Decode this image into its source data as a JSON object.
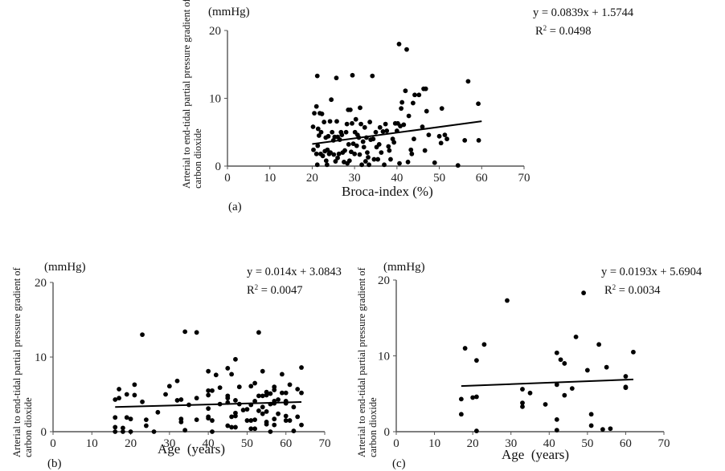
{
  "chart_data": [
    {
      "id": "a",
      "type": "scatter",
      "panel_label": "(a)",
      "unit_label": "(mmHg)",
      "ylabel_line1": "Arterial to end-tidal partial pressure gradient of",
      "ylabel_line2": "carbon dioxide",
      "xlabel": "Broca-index (%)",
      "xlim": [
        0,
        70
      ],
      "ylim": [
        0,
        20
      ],
      "xticks": [
        0,
        10,
        20,
        30,
        40,
        50,
        60,
        70
      ],
      "yticks": [
        0,
        10,
        20
      ],
      "grid": false,
      "trendline": {
        "slope": 0.0839,
        "intercept": 1.5744,
        "x_range": [
          20,
          60
        ]
      },
      "equation": "y = 0.0839x + 1.5744",
      "r2_label": "R",
      "r2_value": " = 0.0498",
      "points": [
        [
          20.2,
          5.8
        ],
        [
          20.3,
          2.4
        ],
        [
          20.5,
          7.8
        ],
        [
          21.0,
          8.8
        ],
        [
          21.0,
          1.8
        ],
        [
          21.2,
          13.3
        ],
        [
          21.2,
          0.2
        ],
        [
          21.3,
          3.0
        ],
        [
          21.4,
          5.5
        ],
        [
          21.6,
          4.5
        ],
        [
          21.8,
          7.8
        ],
        [
          22.0,
          1.8
        ],
        [
          22.1,
          5.0
        ],
        [
          22.3,
          7.7
        ],
        [
          22.5,
          1.5
        ],
        [
          22.8,
          6.5
        ],
        [
          23.0,
          2.2
        ],
        [
          23.2,
          4.2
        ],
        [
          23.3,
          0.8
        ],
        [
          23.5,
          0.2
        ],
        [
          23.6,
          2.4
        ],
        [
          23.8,
          4.4
        ],
        [
          24.0,
          1.8
        ],
        [
          24.2,
          6.6
        ],
        [
          24.3,
          2.0
        ],
        [
          24.5,
          9.8
        ],
        [
          24.7,
          5.0
        ],
        [
          25.0,
          3.8
        ],
        [
          25.1,
          1.7
        ],
        [
          25.3,
          4.3
        ],
        [
          25.5,
          0.7
        ],
        [
          25.7,
          13.0
        ],
        [
          25.8,
          6.6
        ],
        [
          26.0,
          4.3
        ],
        [
          26.0,
          1.2
        ],
        [
          26.3,
          1.8
        ],
        [
          26.5,
          3.9
        ],
        [
          26.8,
          5.0
        ],
        [
          27.0,
          4.6
        ],
        [
          27.2,
          2.0
        ],
        [
          27.5,
          0.6
        ],
        [
          27.7,
          2.3
        ],
        [
          28.0,
          5.0
        ],
        [
          28.2,
          6.2
        ],
        [
          28.3,
          0.4
        ],
        [
          28.5,
          8.3
        ],
        [
          28.6,
          3.2
        ],
        [
          28.8,
          0.8
        ],
        [
          29.0,
          8.3
        ],
        [
          29.2,
          2.1
        ],
        [
          29.4,
          6.3
        ],
        [
          29.5,
          13.4
        ],
        [
          29.7,
          3.3
        ],
        [
          30.0,
          1.8
        ],
        [
          30.1,
          5.0
        ],
        [
          30.3,
          6.9
        ],
        [
          30.5,
          3.0
        ],
        [
          30.7,
          4.6
        ],
        [
          31.0,
          4.2
        ],
        [
          31.2,
          1.7
        ],
        [
          31.3,
          8.6
        ],
        [
          31.5,
          6.2
        ],
        [
          31.7,
          0.2
        ],
        [
          32.0,
          3.6
        ],
        [
          32.2,
          2.8
        ],
        [
          32.4,
          5.7
        ],
        [
          32.6,
          0.7
        ],
        [
          32.8,
          4.2
        ],
        [
          33.0,
          2.0
        ],
        [
          33.2,
          1.3
        ],
        [
          33.4,
          0.2
        ],
        [
          33.6,
          6.5
        ],
        [
          33.8,
          3.9
        ],
        [
          34.2,
          13.3
        ],
        [
          34.4,
          4.0
        ],
        [
          34.6,
          1.0
        ],
        [
          35.0,
          5.0
        ],
        [
          35.2,
          2.8
        ],
        [
          35.5,
          1.0
        ],
        [
          35.8,
          3.2
        ],
        [
          36.0,
          5.7
        ],
        [
          36.3,
          2.0
        ],
        [
          36.7,
          5.1
        ],
        [
          37.0,
          0.2
        ],
        [
          37.3,
          6.2
        ],
        [
          37.6,
          5.2
        ],
        [
          38.0,
          2.9
        ],
        [
          38.2,
          2.3
        ],
        [
          38.5,
          1.0
        ],
        [
          39.0,
          4.0
        ],
        [
          39.3,
          3.5
        ],
        [
          39.6,
          6.3
        ],
        [
          40.0,
          5.2
        ],
        [
          40.2,
          6.3
        ],
        [
          40.5,
          18.0
        ],
        [
          40.6,
          0.4
        ],
        [
          40.8,
          5.9
        ],
        [
          41.0,
          8.5
        ],
        [
          41.2,
          9.4
        ],
        [
          41.6,
          6.1
        ],
        [
          42.0,
          11.1
        ],
        [
          42.3,
          17.2
        ],
        [
          42.6,
          0.6
        ],
        [
          42.8,
          7.4
        ],
        [
          43.3,
          2.4
        ],
        [
          43.5,
          1.8
        ],
        [
          43.8,
          9.3
        ],
        [
          44.0,
          4.0
        ],
        [
          44.2,
          10.5
        ],
        [
          45.2,
          10.5
        ],
        [
          46.0,
          5.8
        ],
        [
          46.3,
          11.4
        ],
        [
          46.6,
          2.3
        ],
        [
          46.8,
          11.4
        ],
        [
          47.0,
          8.1
        ],
        [
          47.5,
          4.6
        ],
        [
          48.9,
          0.5
        ],
        [
          50.0,
          4.4
        ],
        [
          50.4,
          3.4
        ],
        [
          50.6,
          8.5
        ],
        [
          51.3,
          4.6
        ],
        [
          51.8,
          4.0
        ],
        [
          54.4,
          0.1
        ],
        [
          56.0,
          3.8
        ],
        [
          56.8,
          12.5
        ],
        [
          59.2,
          9.2
        ],
        [
          59.3,
          3.8
        ]
      ]
    },
    {
      "id": "b",
      "type": "scatter",
      "panel_label": "(b)",
      "unit_label": "(mmHg)",
      "ylabel_line1": "Arterial to end-tidal partial pressure gradient of",
      "ylabel_line2": "carbon dioxide",
      "xlabel": "Age  (years)",
      "xlim": [
        0,
        70
      ],
      "ylim": [
        0,
        20
      ],
      "xticks": [
        0,
        10,
        20,
        30,
        40,
        50,
        60,
        70
      ],
      "yticks": [
        0,
        10,
        20
      ],
      "grid": false,
      "trendline": {
        "slope": 0.014,
        "intercept": 3.0843,
        "x_range": [
          16,
          64
        ]
      },
      "equation": "y = 0.014x + 3.0843",
      "r2_label": "R",
      "r2_value": " = 0.0047",
      "points": [
        [
          16,
          4.3
        ],
        [
          16,
          1.9
        ],
        [
          16,
          0.6
        ],
        [
          16,
          0.0
        ],
        [
          17,
          5.7
        ],
        [
          17,
          4.5
        ],
        [
          18,
          0.5
        ],
        [
          18,
          0.0
        ],
        [
          19,
          5.0
        ],
        [
          19,
          1.9
        ],
        [
          20,
          1.7
        ],
        [
          20,
          0.0
        ],
        [
          21,
          6.3
        ],
        [
          21,
          4.9
        ],
        [
          23,
          13.0
        ],
        [
          23,
          4.0
        ],
        [
          24,
          1.6
        ],
        [
          24,
          0.8
        ],
        [
          26,
          0.0
        ],
        [
          27,
          2.6
        ],
        [
          29,
          5.0
        ],
        [
          30,
          6.1
        ],
        [
          32,
          6.8
        ],
        [
          32,
          4.2
        ],
        [
          33,
          4.3
        ],
        [
          33,
          1.7
        ],
        [
          33,
          1.3
        ],
        [
          34,
          13.4
        ],
        [
          34,
          0.2
        ],
        [
          35,
          3.6
        ],
        [
          37,
          13.3
        ],
        [
          37,
          4.5
        ],
        [
          37,
          1.6
        ],
        [
          40,
          8.1
        ],
        [
          40,
          5.5
        ],
        [
          40,
          4.9
        ],
        [
          40,
          3.1
        ],
        [
          40,
          2.0
        ],
        [
          40,
          1.8
        ],
        [
          41,
          5.5
        ],
        [
          41,
          1.5
        ],
        [
          41,
          0.0
        ],
        [
          42,
          7.6
        ],
        [
          43,
          5.9
        ],
        [
          43,
          3.7
        ],
        [
          45,
          8.5
        ],
        [
          45,
          4.8
        ],
        [
          45,
          4.5
        ],
        [
          45,
          3.9
        ],
        [
          45,
          0.8
        ],
        [
          46,
          7.7
        ],
        [
          46,
          2.0
        ],
        [
          46,
          0.6
        ],
        [
          47,
          9.7
        ],
        [
          47,
          4.2
        ],
        [
          47,
          2.5
        ],
        [
          47,
          2.1
        ],
        [
          47,
          0.6
        ],
        [
          48,
          6.0
        ],
        [
          48,
          3.7
        ],
        [
          49,
          2.9
        ],
        [
          50,
          3.0
        ],
        [
          50,
          1.5
        ],
        [
          51,
          6.1
        ],
        [
          51,
          3.6
        ],
        [
          51,
          1.5
        ],
        [
          51,
          0.4
        ],
        [
          52,
          6.5
        ],
        [
          52,
          4.1
        ],
        [
          52,
          1.6
        ],
        [
          52,
          0.4
        ],
        [
          53,
          13.3
        ],
        [
          53,
          4.8
        ],
        [
          53,
          2.8
        ],
        [
          54,
          8.1
        ],
        [
          54,
          4.8
        ],
        [
          54,
          3.3
        ],
        [
          54,
          2.4
        ],
        [
          55,
          5.3
        ],
        [
          55,
          4.9
        ],
        [
          55,
          2.7
        ],
        [
          55,
          1.3
        ],
        [
          55,
          1.0
        ],
        [
          56,
          5.1
        ],
        [
          56,
          3.7
        ],
        [
          56,
          0.0
        ],
        [
          57,
          6.0
        ],
        [
          57,
          5.6
        ],
        [
          57,
          4.1
        ],
        [
          57,
          3.8
        ],
        [
          57,
          1.7
        ],
        [
          57,
          0.9
        ],
        [
          58,
          4.3
        ],
        [
          58,
          2.4
        ],
        [
          59,
          7.7
        ],
        [
          59,
          5.2
        ],
        [
          60,
          5.2
        ],
        [
          60,
          4.1
        ],
        [
          60,
          3.8
        ],
        [
          60,
          2.1
        ],
        [
          60,
          1.5
        ],
        [
          61,
          6.3
        ],
        [
          61,
          1.5
        ],
        [
          62,
          3.3
        ],
        [
          62,
          0.1
        ],
        [
          63,
          5.7
        ],
        [
          63,
          2.0
        ],
        [
          64,
          8.6
        ],
        [
          64,
          5.2
        ],
        [
          64,
          0.9
        ]
      ]
    },
    {
      "id": "c",
      "type": "scatter",
      "panel_label": "(c)",
      "unit_label": "(mmHg)",
      "ylabel_line1": "Arterial to end-tidal partial pressure gradient of",
      "ylabel_line2": "carbon dioxide",
      "xlabel": "Age  (years)",
      "xlim": [
        0,
        70
      ],
      "ylim": [
        0,
        20
      ],
      "xticks": [
        0,
        10,
        20,
        30,
        40,
        50,
        60,
        70
      ],
      "yticks": [
        0,
        10,
        20
      ],
      "grid": false,
      "trendline": {
        "slope": 0.0193,
        "intercept": 5.6904,
        "x_range": [
          17,
          62
        ]
      },
      "equation": "y = 0.0193x + 5.6904",
      "r2_label": "R",
      "r2_value": " = 0.0034",
      "points": [
        [
          17,
          4.3
        ],
        [
          17,
          2.3
        ],
        [
          18,
          11.0
        ],
        [
          20,
          4.5
        ],
        [
          21,
          9.4
        ],
        [
          21,
          4.6
        ],
        [
          21,
          0.1
        ],
        [
          23,
          11.5
        ],
        [
          29,
          17.3
        ],
        [
          33,
          5.6
        ],
        [
          33,
          3.8
        ],
        [
          33,
          3.3
        ],
        [
          35,
          5.1
        ],
        [
          39,
          3.6
        ],
        [
          42,
          10.4
        ],
        [
          42,
          6.2
        ],
        [
          42,
          1.6
        ],
        [
          42,
          0.2
        ],
        [
          43,
          9.5
        ],
        [
          44,
          9.0
        ],
        [
          44,
          4.8
        ],
        [
          46,
          5.7
        ],
        [
          47,
          12.5
        ],
        [
          49,
          18.3
        ],
        [
          50,
          8.1
        ],
        [
          51,
          2.3
        ],
        [
          51,
          0.8
        ],
        [
          53,
          11.5
        ],
        [
          54,
          0.3
        ],
        [
          55,
          8.5
        ],
        [
          56,
          0.4
        ],
        [
          60,
          7.3
        ],
        [
          60,
          5.9
        ],
        [
          60,
          5.8
        ],
        [
          62,
          10.5
        ]
      ]
    }
  ]
}
